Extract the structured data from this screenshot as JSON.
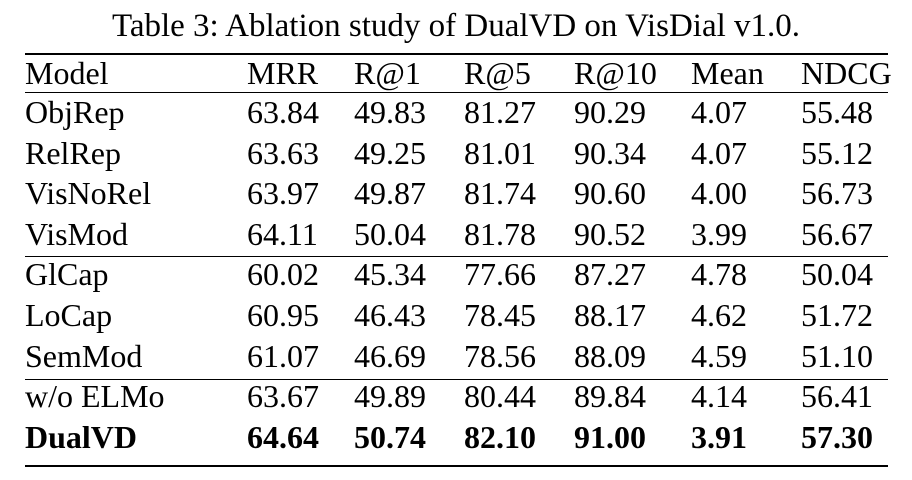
{
  "caption": "Table 3: Ablation study of DualVD on VisDial v1.0.",
  "chart_data": {
    "type": "table",
    "title": "Table 3: Ablation study of DualVD on VisDial v1.0.",
    "columns": [
      "Model",
      "MRR",
      "R@1",
      "R@5",
      "R@10",
      "Mean",
      "NDCG"
    ],
    "groups": [
      [
        [
          "ObjRep",
          "63.84",
          "49.83",
          "81.27",
          "90.29",
          "4.07",
          "55.48"
        ],
        [
          "RelRep",
          "63.63",
          "49.25",
          "81.01",
          "90.34",
          "4.07",
          "55.12"
        ],
        [
          "VisNoRel",
          "63.97",
          "49.87",
          "81.74",
          "90.60",
          "4.00",
          "56.73"
        ],
        [
          "VisMod",
          "64.11",
          "50.04",
          "81.78",
          "90.52",
          "3.99",
          "56.67"
        ]
      ],
      [
        [
          "GlCap",
          "60.02",
          "45.34",
          "77.66",
          "87.27",
          "4.78",
          "50.04"
        ],
        [
          "LoCap",
          "60.95",
          "46.43",
          "78.45",
          "88.17",
          "4.62",
          "51.72"
        ],
        [
          "SemMod",
          "61.07",
          "46.69",
          "78.56",
          "88.09",
          "4.59",
          "51.10"
        ]
      ],
      [
        [
          "w/o ELMo",
          "63.67",
          "49.89",
          "80.44",
          "89.84",
          "4.14",
          "56.41"
        ],
        [
          "DualVD",
          "64.64",
          "50.74",
          "82.10",
          "91.00",
          "3.91",
          "57.30"
        ]
      ]
    ],
    "bold_row": "DualVD"
  }
}
